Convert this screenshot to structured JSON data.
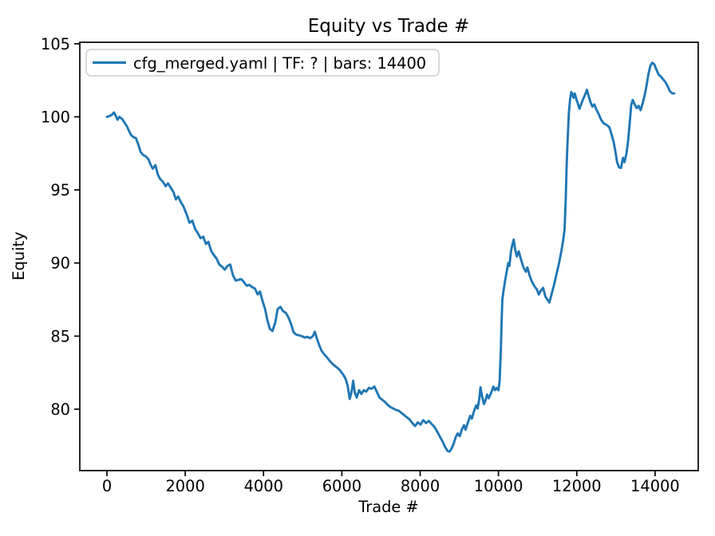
{
  "window_title": "Equity vs Trade #",
  "chart_data": {
    "type": "line",
    "title": "Equity vs Trade #",
    "xlabel": "Trade #",
    "ylabel": "Equity",
    "legend_position": "upper left",
    "grid": false,
    "line_color": "#1f77b4",
    "axis_color": "#000000",
    "legend_edge_color": "#cccccc",
    "xlim": [
      -693,
      15103
    ],
    "ylim": [
      75.8,
      105.1
    ],
    "xticks": [
      0,
      2000,
      4000,
      6000,
      8000,
      10000,
      12000,
      14000
    ],
    "yticks": [
      80,
      85,
      90,
      95,
      100,
      105
    ],
    "series": [
      {
        "name": "cfg_merged.yaml | TF: ? | bars: 14400",
        "points": [
          [
            0,
            100.0
          ],
          [
            60,
            100.05
          ],
          [
            130,
            100.15
          ],
          [
            180,
            100.3
          ],
          [
            230,
            100.05
          ],
          [
            270,
            99.8
          ],
          [
            320,
            100.0
          ],
          [
            390,
            99.85
          ],
          [
            450,
            99.6
          ],
          [
            510,
            99.35
          ],
          [
            570,
            99.0
          ],
          [
            620,
            98.75
          ],
          [
            680,
            98.6
          ],
          [
            740,
            98.55
          ],
          [
            800,
            98.1
          ],
          [
            860,
            97.6
          ],
          [
            920,
            97.4
          ],
          [
            990,
            97.3
          ],
          [
            1060,
            97.1
          ],
          [
            1120,
            96.7
          ],
          [
            1170,
            96.45
          ],
          [
            1240,
            96.7
          ],
          [
            1300,
            96.05
          ],
          [
            1360,
            95.75
          ],
          [
            1430,
            95.55
          ],
          [
            1500,
            95.25
          ],
          [
            1560,
            95.45
          ],
          [
            1630,
            95.15
          ],
          [
            1700,
            94.85
          ],
          [
            1760,
            94.35
          ],
          [
            1820,
            94.55
          ],
          [
            1890,
            94.15
          ],
          [
            1950,
            93.9
          ],
          [
            2040,
            93.3
          ],
          [
            2110,
            92.75
          ],
          [
            2180,
            92.9
          ],
          [
            2250,
            92.35
          ],
          [
            2320,
            92.05
          ],
          [
            2390,
            91.7
          ],
          [
            2460,
            91.8
          ],
          [
            2530,
            91.3
          ],
          [
            2590,
            91.45
          ],
          [
            2660,
            90.85
          ],
          [
            2730,
            90.55
          ],
          [
            2800,
            90.3
          ],
          [
            2870,
            89.9
          ],
          [
            2940,
            89.75
          ],
          [
            3010,
            89.55
          ],
          [
            3080,
            89.8
          ],
          [
            3150,
            89.9
          ],
          [
            3220,
            89.15
          ],
          [
            3290,
            88.8
          ],
          [
            3360,
            88.85
          ],
          [
            3430,
            88.9
          ],
          [
            3500,
            88.7
          ],
          [
            3570,
            88.45
          ],
          [
            3640,
            88.5
          ],
          [
            3710,
            88.35
          ],
          [
            3780,
            88.25
          ],
          [
            3850,
            87.85
          ],
          [
            3910,
            88.05
          ],
          [
            3970,
            87.45
          ],
          [
            4040,
            86.85
          ],
          [
            4100,
            86.05
          ],
          [
            4160,
            85.5
          ],
          [
            4230,
            85.35
          ],
          [
            4300,
            85.95
          ],
          [
            4360,
            86.85
          ],
          [
            4430,
            87.0
          ],
          [
            4500,
            86.7
          ],
          [
            4570,
            86.6
          ],
          [
            4640,
            86.25
          ],
          [
            4700,
            85.85
          ],
          [
            4770,
            85.25
          ],
          [
            4840,
            85.1
          ],
          [
            4910,
            85.05
          ],
          [
            4980,
            85.0
          ],
          [
            5050,
            84.9
          ],
          [
            5120,
            84.95
          ],
          [
            5190,
            84.85
          ],
          [
            5260,
            85.0
          ],
          [
            5310,
            85.3
          ],
          [
            5360,
            84.85
          ],
          [
            5420,
            84.4
          ],
          [
            5480,
            84.0
          ],
          [
            5550,
            83.75
          ],
          [
            5620,
            83.55
          ],
          [
            5690,
            83.3
          ],
          [
            5760,
            83.1
          ],
          [
            5830,
            82.95
          ],
          [
            5900,
            82.8
          ],
          [
            5970,
            82.6
          ],
          [
            6040,
            82.35
          ],
          [
            6100,
            82.05
          ],
          [
            6150,
            81.6
          ],
          [
            6200,
            80.7
          ],
          [
            6250,
            81.2
          ],
          [
            6290,
            81.95
          ],
          [
            6330,
            81.15
          ],
          [
            6380,
            80.8
          ],
          [
            6440,
            81.3
          ],
          [
            6500,
            81.05
          ],
          [
            6560,
            81.3
          ],
          [
            6620,
            81.2
          ],
          [
            6690,
            81.45
          ],
          [
            6760,
            81.4
          ],
          [
            6830,
            81.55
          ],
          [
            6900,
            81.15
          ],
          [
            6960,
            80.8
          ],
          [
            7030,
            80.65
          ],
          [
            7100,
            80.5
          ],
          [
            7170,
            80.3
          ],
          [
            7240,
            80.15
          ],
          [
            7310,
            80.05
          ],
          [
            7380,
            79.95
          ],
          [
            7450,
            79.9
          ],
          [
            7520,
            79.75
          ],
          [
            7590,
            79.6
          ],
          [
            7660,
            79.45
          ],
          [
            7730,
            79.3
          ],
          [
            7800,
            79.05
          ],
          [
            7870,
            78.85
          ],
          [
            7940,
            79.1
          ],
          [
            8010,
            78.95
          ],
          [
            8080,
            79.25
          ],
          [
            8150,
            79.05
          ],
          [
            8220,
            79.2
          ],
          [
            8290,
            79.0
          ],
          [
            8360,
            78.8
          ],
          [
            8430,
            78.5
          ],
          [
            8500,
            78.15
          ],
          [
            8570,
            77.8
          ],
          [
            8640,
            77.4
          ],
          [
            8700,
            77.15
          ],
          [
            8750,
            77.1
          ],
          [
            8800,
            77.3
          ],
          [
            8850,
            77.6
          ],
          [
            8910,
            78.1
          ],
          [
            8960,
            78.35
          ],
          [
            9010,
            78.15
          ],
          [
            9070,
            78.65
          ],
          [
            9120,
            78.9
          ],
          [
            9160,
            78.6
          ],
          [
            9220,
            79.1
          ],
          [
            9280,
            79.55
          ],
          [
            9320,
            79.35
          ],
          [
            9380,
            79.9
          ],
          [
            9430,
            80.25
          ],
          [
            9470,
            80.05
          ],
          [
            9510,
            80.7
          ],
          [
            9540,
            81.5
          ],
          [
            9580,
            80.9
          ],
          [
            9630,
            80.35
          ],
          [
            9670,
            80.6
          ],
          [
            9710,
            81.0
          ],
          [
            9750,
            80.75
          ],
          [
            9810,
            81.1
          ],
          [
            9870,
            81.55
          ],
          [
            9910,
            81.3
          ],
          [
            9950,
            81.45
          ],
          [
            10000,
            81.3
          ],
          [
            10030,
            81.9
          ],
          [
            10060,
            84.0
          ],
          [
            10080,
            86.0
          ],
          [
            10100,
            87.5
          ],
          [
            10130,
            88.1
          ],
          [
            10170,
            88.8
          ],
          [
            10210,
            89.4
          ],
          [
            10250,
            90.0
          ],
          [
            10280,
            89.8
          ],
          [
            10320,
            90.8
          ],
          [
            10360,
            91.3
          ],
          [
            10390,
            91.6
          ],
          [
            10430,
            90.9
          ],
          [
            10470,
            90.45
          ],
          [
            10520,
            90.8
          ],
          [
            10580,
            90.2
          ],
          [
            10640,
            89.7
          ],
          [
            10700,
            89.4
          ],
          [
            10740,
            89.7
          ],
          [
            10800,
            89.1
          ],
          [
            10860,
            88.7
          ],
          [
            10920,
            88.4
          ],
          [
            10980,
            88.2
          ],
          [
            11030,
            87.85
          ],
          [
            11080,
            88.1
          ],
          [
            11140,
            88.3
          ],
          [
            11200,
            87.7
          ],
          [
            11250,
            87.5
          ],
          [
            11300,
            87.3
          ],
          [
            11360,
            87.9
          ],
          [
            11420,
            88.5
          ],
          [
            11480,
            89.2
          ],
          [
            11540,
            89.9
          ],
          [
            11600,
            90.7
          ],
          [
            11650,
            91.5
          ],
          [
            11690,
            92.3
          ],
          [
            11720,
            94.5
          ],
          [
            11740,
            96.5
          ],
          [
            11760,
            98.0
          ],
          [
            11780,
            99.2
          ],
          [
            11800,
            100.3
          ],
          [
            11830,
            101.2
          ],
          [
            11860,
            101.7
          ],
          [
            11890,
            101.55
          ],
          [
            11920,
            101.3
          ],
          [
            11950,
            101.6
          ],
          [
            11990,
            101.2
          ],
          [
            12030,
            100.9
          ],
          [
            12070,
            100.55
          ],
          [
            12110,
            100.85
          ],
          [
            12160,
            101.2
          ],
          [
            12210,
            101.5
          ],
          [
            12260,
            101.85
          ],
          [
            12300,
            101.45
          ],
          [
            12350,
            101.0
          ],
          [
            12400,
            100.7
          ],
          [
            12450,
            100.85
          ],
          [
            12500,
            100.5
          ],
          [
            12560,
            100.2
          ],
          [
            12620,
            99.8
          ],
          [
            12690,
            99.55
          ],
          [
            12760,
            99.45
          ],
          [
            12830,
            99.3
          ],
          [
            12890,
            98.8
          ],
          [
            12940,
            98.3
          ],
          [
            12990,
            97.6
          ],
          [
            13030,
            96.9
          ],
          [
            13080,
            96.55
          ],
          [
            13130,
            96.5
          ],
          [
            13180,
            97.2
          ],
          [
            13220,
            96.9
          ],
          [
            13270,
            97.5
          ],
          [
            13310,
            98.3
          ],
          [
            13350,
            99.5
          ],
          [
            13390,
            100.8
          ],
          [
            13430,
            101.15
          ],
          [
            13480,
            100.85
          ],
          [
            13530,
            100.6
          ],
          [
            13580,
            100.75
          ],
          [
            13630,
            100.45
          ],
          [
            13680,
            100.9
          ],
          [
            13730,
            101.4
          ],
          [
            13780,
            102.1
          ],
          [
            13830,
            102.9
          ],
          [
            13880,
            103.5
          ],
          [
            13930,
            103.7
          ],
          [
            13980,
            103.6
          ],
          [
            14030,
            103.25
          ],
          [
            14090,
            102.9
          ],
          [
            14150,
            102.75
          ],
          [
            14210,
            102.55
          ],
          [
            14270,
            102.35
          ],
          [
            14330,
            102.05
          ],
          [
            14380,
            101.75
          ],
          [
            14440,
            101.6
          ],
          [
            14490,
            101.6
          ]
        ]
      }
    ]
  }
}
